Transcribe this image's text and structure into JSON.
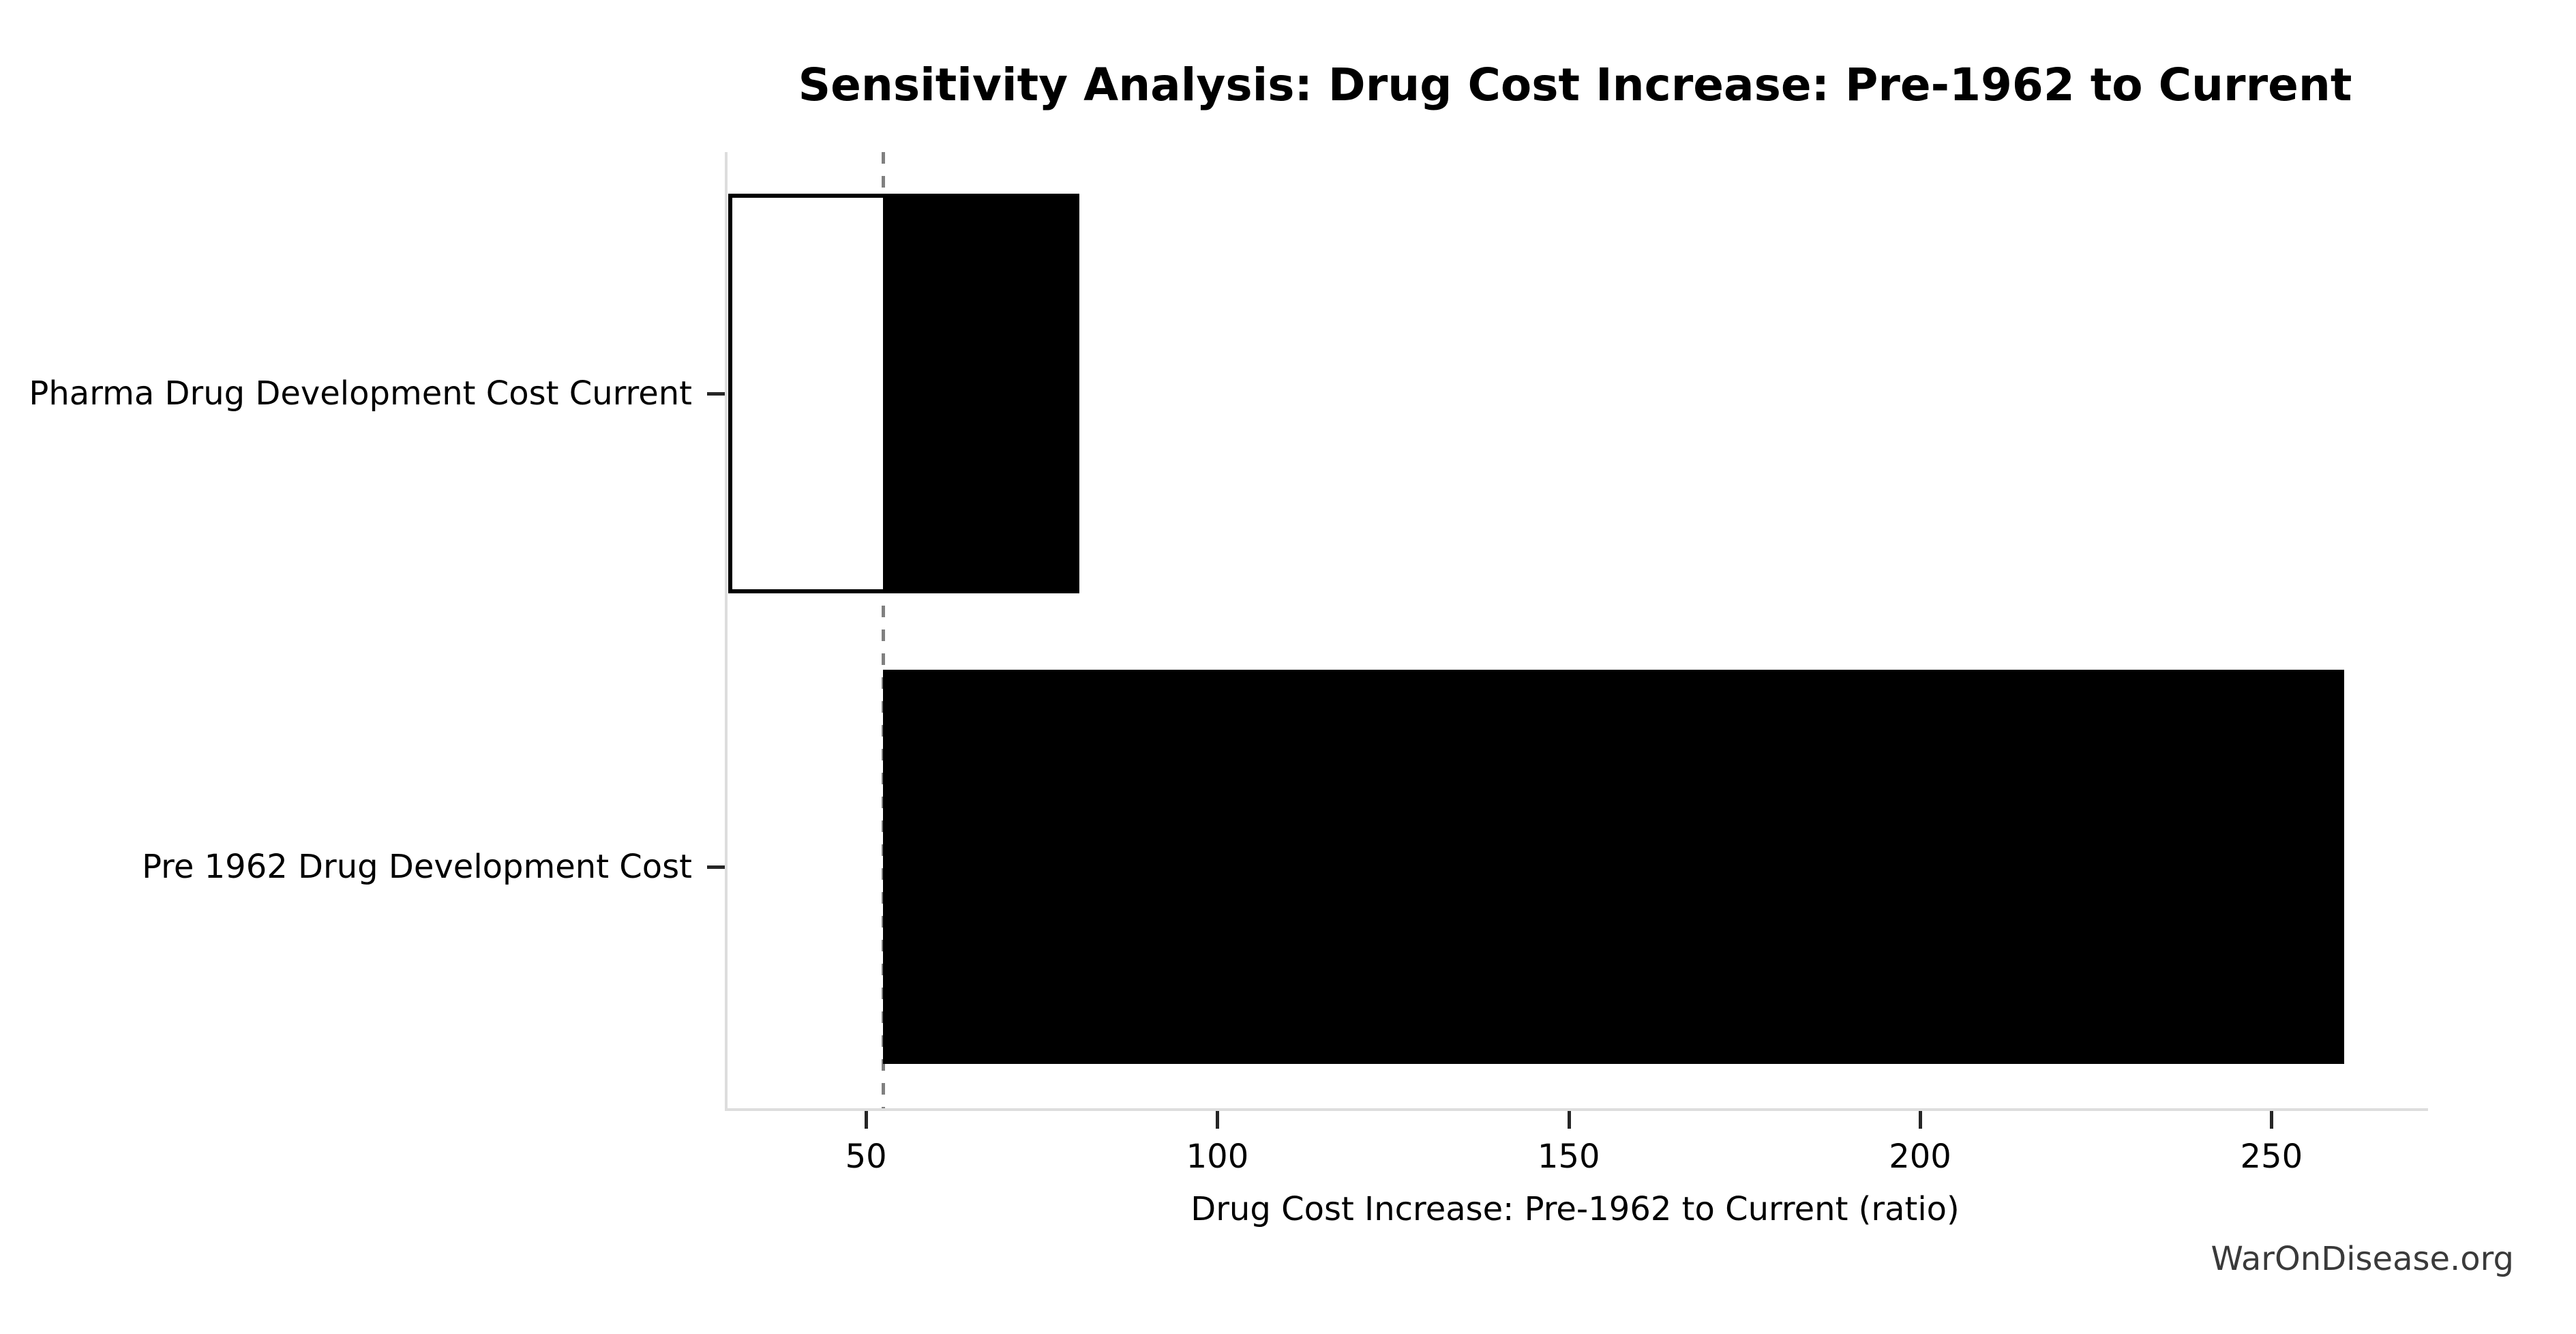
{
  "figure": {
    "watermark": "WarOnDisease.org",
    "background": "#ffffff"
  },
  "chart_data": {
    "type": "bar",
    "subtype": "tornado-sensitivity",
    "orientation": "horizontal",
    "title": "Sensitivity Analysis: Drug Cost Increase: Pre-1962 to Current",
    "xlabel": "Drug Cost Increase: Pre-1962 to Current (ratio)",
    "ylabel": "",
    "categories": [
      "Pharma Drug Development Cost Current",
      "Pre 1962 Drug Development Cost"
    ],
    "baseline": 52,
    "bars": [
      {
        "category": "Pharma Drug Development Cost Current",
        "low": 30,
        "high": 80
      },
      {
        "category": "Pre 1962 Drug Development Cost",
        "low": 52,
        "high": 260
      }
    ],
    "xticks": [
      50,
      100,
      150,
      200,
      250
    ],
    "xlim": [
      29.9,
      271.9
    ],
    "grid": false,
    "legend": "none",
    "styles": {
      "bar_fill_above_baseline": "#000000",
      "bar_fill_below_baseline": "#ffffff",
      "bar_edge_color": "#000000",
      "baseline_line_color": "#808080",
      "baseline_line_style": "dashed",
      "spine_color": "#dddddd",
      "tick_color": "#262626",
      "text_color": "#000000",
      "watermark_color": "#3a3a3a"
    }
  }
}
